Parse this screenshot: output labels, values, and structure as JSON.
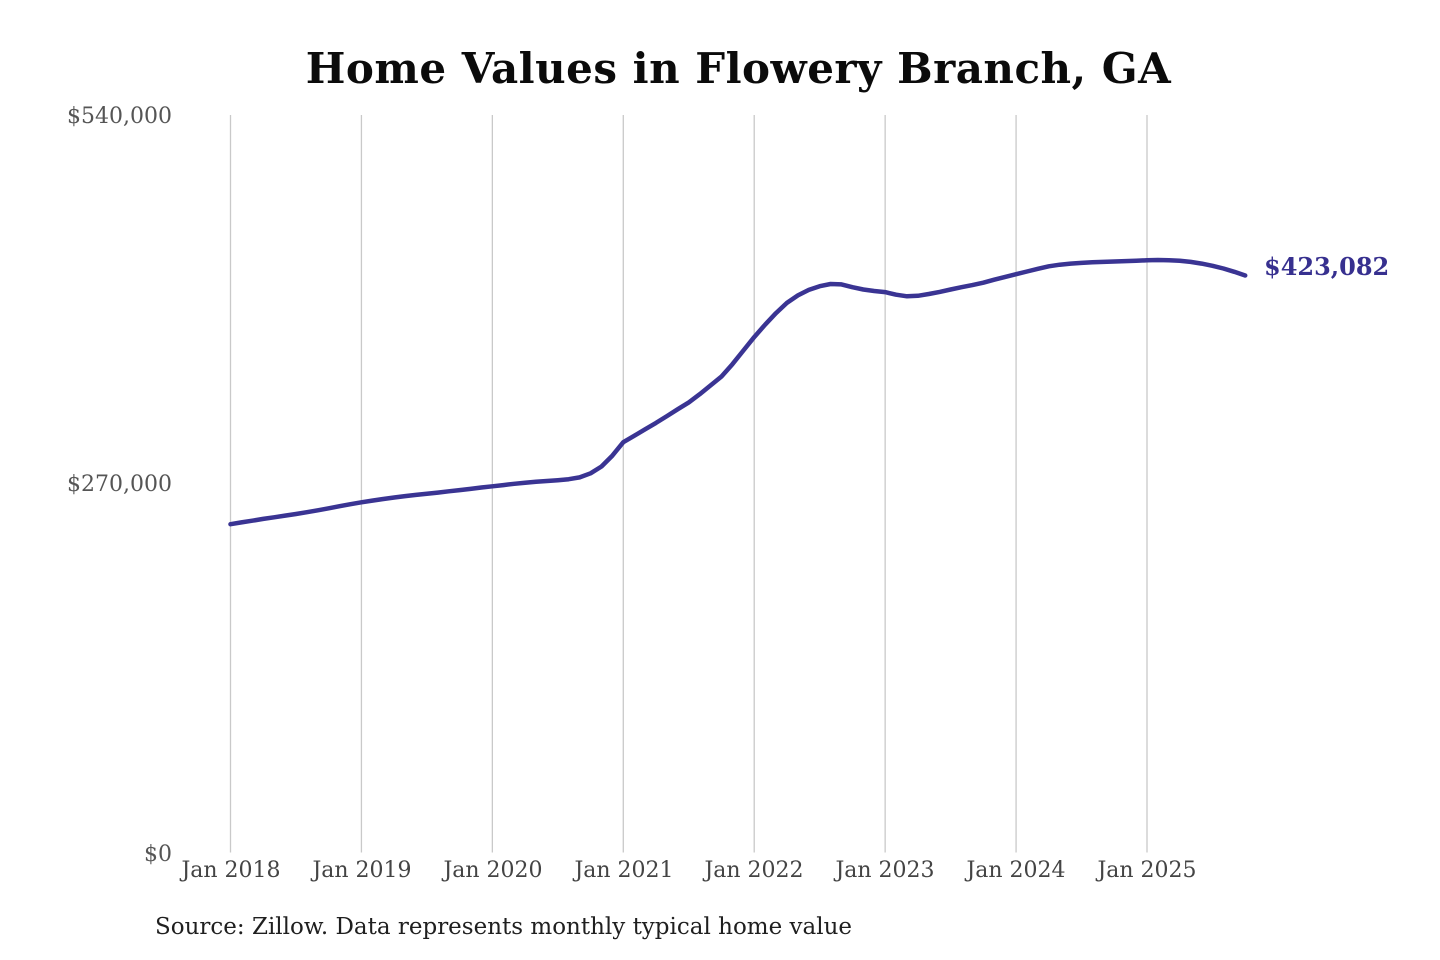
{
  "colors": {
    "background": "#ffffff",
    "line": "#3a3493",
    "grid": "#c9c9c9",
    "title": "#0b0b0b",
    "y_labels": "#555555",
    "x_labels": "#444444",
    "annotation": "#37308f",
    "source": "#1f1f1f"
  },
  "chart_data": {
    "type": "line",
    "title": "Home Values in Flowery Branch, GA",
    "source": "Source: Zillow. Data represents monthly typical home value",
    "xlabel": "",
    "ylabel": "",
    "ylim": [
      0,
      540000
    ],
    "y_tick_values": [
      0,
      270000,
      540000
    ],
    "y_tick_labels": [
      "$0",
      "$270,000",
      "$540,000"
    ],
    "x_tick_labels": [
      "Jan 2018",
      "Jan 2019",
      "Jan 2020",
      "Jan 2021",
      "Jan 2022",
      "Jan 2023",
      "Jan 2024",
      "Jan 2025"
    ],
    "grid": "vertical-only",
    "legend": "none",
    "annotation": {
      "text": "$423,082",
      "value": 423082,
      "position": "line-end"
    },
    "series": [
      {
        "name": "Monthly typical home value",
        "months": [
          "2018-01",
          "2018-02",
          "2018-03",
          "2018-04",
          "2018-05",
          "2018-06",
          "2018-07",
          "2018-08",
          "2018-09",
          "2018-10",
          "2018-11",
          "2018-12",
          "2019-01",
          "2019-02",
          "2019-03",
          "2019-04",
          "2019-05",
          "2019-06",
          "2019-07",
          "2019-08",
          "2019-09",
          "2019-10",
          "2019-11",
          "2019-12",
          "2020-01",
          "2020-02",
          "2020-03",
          "2020-04",
          "2020-05",
          "2020-06",
          "2020-07",
          "2020-08",
          "2020-09",
          "2020-10",
          "2020-11",
          "2020-12",
          "2021-01",
          "2021-02",
          "2021-03",
          "2021-04",
          "2021-05",
          "2021-06",
          "2021-07",
          "2021-08",
          "2021-09",
          "2021-10",
          "2021-11",
          "2021-12",
          "2022-01",
          "2022-02",
          "2022-03",
          "2022-04",
          "2022-05",
          "2022-06",
          "2022-07",
          "2022-08",
          "2022-09",
          "2022-10",
          "2022-11",
          "2022-12",
          "2023-01",
          "2023-02",
          "2023-03",
          "2023-04",
          "2023-05",
          "2023-06",
          "2023-07",
          "2023-08",
          "2023-09",
          "2023-10",
          "2023-11",
          "2023-12",
          "2024-01",
          "2024-02",
          "2024-03",
          "2024-04",
          "2024-05",
          "2024-06",
          "2024-07",
          "2024-08",
          "2024-09",
          "2024-10",
          "2024-11",
          "2024-12",
          "2025-01",
          "2025-02",
          "2025-03",
          "2025-04",
          "2025-05",
          "2025-06",
          "2025-07",
          "2025-08",
          "2025-09",
          "2025-10"
        ],
        "values": [
          240700,
          242000,
          243300,
          244600,
          245800,
          247000,
          248200,
          249500,
          250900,
          252400,
          253900,
          255400,
          256800,
          258000,
          259200,
          260300,
          261300,
          262200,
          263000,
          263900,
          264800,
          265700,
          266600,
          267600,
          268500,
          269400,
          270300,
          271100,
          271800,
          272400,
          273000,
          273700,
          275000,
          278000,
          283000,
          291000,
          300800,
          305500,
          310300,
          315000,
          320000,
          325000,
          330000,
          336000,
          342500,
          349000,
          358000,
          368000,
          377900,
          387000,
          395500,
          403000,
          408500,
          412500,
          415200,
          416800,
          416500,
          414500,
          412800,
          411700,
          410900,
          409000,
          407800,
          408200,
          409500,
          411000,
          412800,
          414500,
          416000,
          417800,
          420000,
          422000,
          424000,
          426000,
          428000,
          429800,
          431000,
          431800,
          432300,
          432700,
          433000,
          433300,
          433600,
          433900,
          434200,
          434400,
          434300,
          433800,
          433000,
          431800,
          430200,
          428200,
          425800,
          423082
        ]
      }
    ]
  }
}
